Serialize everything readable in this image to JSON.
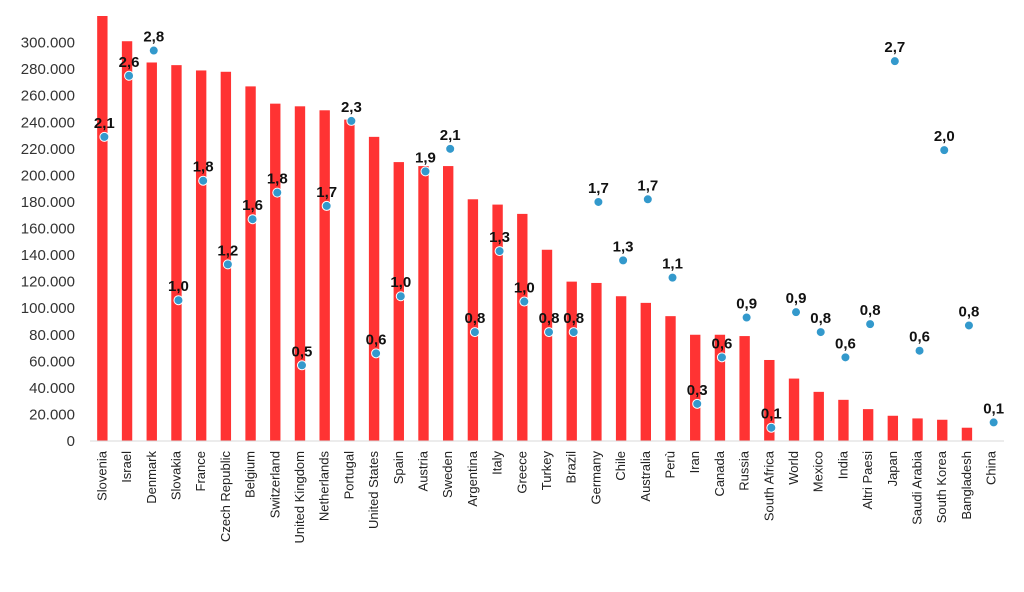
{
  "colors": {
    "bar": "#ff3333",
    "point": "#3399cc",
    "point_stroke": "#ffffff",
    "axis": "#d9d9d9"
  },
  "chart_data": {
    "type": "bar",
    "title": "",
    "xlabel": "",
    "ylabel": "",
    "ylim": [
      0,
      320000
    ],
    "yticks": [
      0,
      20000,
      40000,
      60000,
      80000,
      100000,
      120000,
      140000,
      160000,
      180000,
      200000,
      220000,
      240000,
      260000,
      280000,
      300000
    ],
    "ytick_labels": [
      "0",
      "20.000",
      "40.000",
      "60.000",
      "80.000",
      "100.000",
      "120.000",
      "140.000",
      "160.000",
      "180.000",
      "200.000",
      "220.000",
      "240.000",
      "260.000",
      "280.000",
      "300.000"
    ],
    "grid": false,
    "legend": "none",
    "categories": [
      "Slovenia",
      "Israel",
      "Denmark",
      "Slovakia",
      "France",
      "Czech Republic",
      "Belgium",
      "Switzerland",
      "United Kingdom",
      "Netherlands",
      "Portugal",
      "United States",
      "Spain",
      "Austria",
      "Sweden",
      "Argentina",
      "Italy",
      "Greece",
      "Turkey",
      "Brazil",
      "Germany",
      "Chile",
      "Australia",
      "Perù",
      "Iran",
      "Canada",
      "Russia",
      "South Africa",
      "World",
      "Mexico",
      "India",
      "Altri Paesi",
      "Japan",
      "Saudi Arabia",
      "South Korea",
      "Bangladesh",
      "China"
    ],
    "series": [
      {
        "type": "bar",
        "values": [
          320000,
          301000,
          285000,
          283000,
          279000,
          278000,
          267000,
          254000,
          252000,
          249000,
          242000,
          229000,
          210000,
          207000,
          207000,
          182000,
          178000,
          171000,
          144000,
          120000,
          119000,
          109000,
          104000,
          94000,
          80000,
          80000,
          79000,
          61000,
          47000,
          37000,
          31000,
          24000,
          19000,
          17000,
          16000,
          10000,
          0
        ]
      },
      {
        "type": "scatter",
        "values": [
          229000,
          275000,
          294000,
          106000,
          196000,
          133000,
          167000,
          187000,
          57000,
          177000,
          241000,
          66000,
          109000,
          203000,
          220000,
          82000,
          143000,
          105000,
          82000,
          82000,
          180000,
          136000,
          182000,
          123000,
          28000,
          63000,
          93000,
          10000,
          97000,
          82000,
          63000,
          88000,
          286000,
          68000,
          219000,
          87000,
          14000
        ],
        "labels": [
          "2,1",
          "2,6",
          "2,8",
          "1,0",
          "1,8",
          "1,2",
          "1,6",
          "1,8",
          "0,5",
          "1,7",
          "2,3",
          "0,6",
          "1,0",
          "1,9",
          "2,1",
          "0,8",
          "1,3",
          "1,0",
          "0,8",
          "0,8",
          "1,7",
          "1,3",
          "1,7",
          "1,1",
          "0,3",
          "0,6",
          "0,9",
          "0,1",
          "0,9",
          "0,8",
          "0,6",
          "0,8",
          "2,7",
          "0,6",
          "2,0",
          "0,8",
          "0,1"
        ]
      }
    ]
  }
}
